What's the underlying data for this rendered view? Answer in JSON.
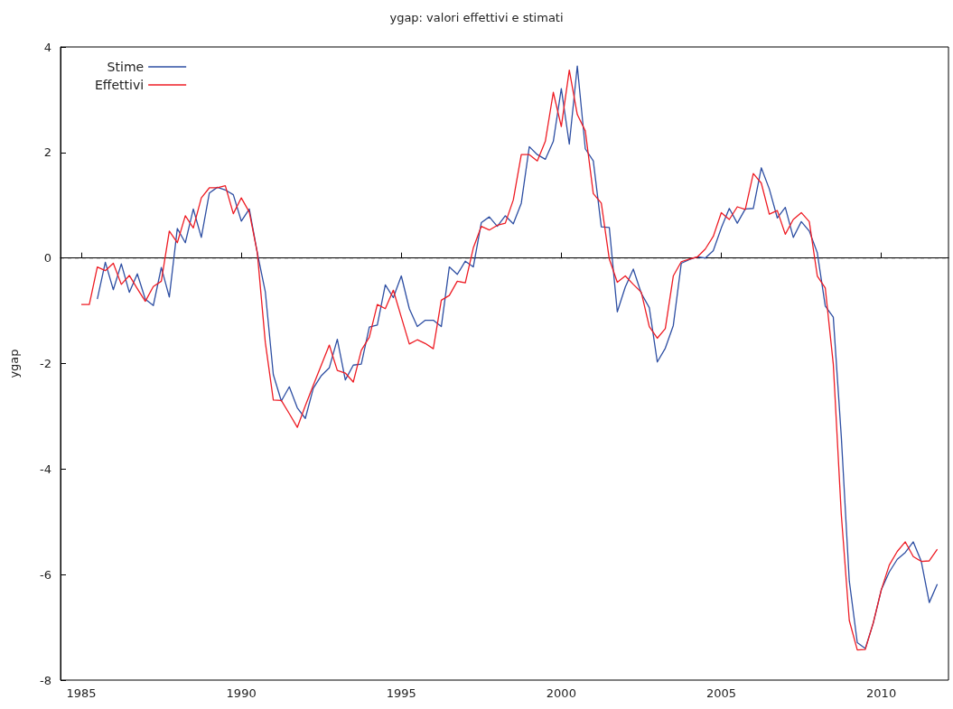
{
  "chart_data": {
    "type": "line",
    "title": "ygap: valori effettivi e stimati",
    "ylabel": "ygap",
    "xlim": [
      1984.35,
      2012.1
    ],
    "xticks": [
      1985,
      1990,
      1995,
      2000,
      2005,
      2010
    ],
    "ylim": [
      -8,
      4
    ],
    "yticks": [
      -8,
      -6,
      -4,
      -2,
      0,
      2,
      4
    ],
    "grid": false,
    "legend": "top left",
    "marker": "none",
    "line_style": "solid",
    "ref_lines": [
      {
        "axis": "y",
        "value": 0,
        "color": "#000000",
        "line_style": "dashed"
      }
    ],
    "series": [
      {
        "name": "Stime",
        "color": "#2e4fa3",
        "x": [
          1985.5,
          1985.75,
          1986,
          1986.25,
          1986.5,
          1986.75,
          1987,
          1987.25,
          1987.5,
          1987.75,
          1988,
          1988.25,
          1988.5,
          1988.75,
          1989,
          1989.25,
          1989.5,
          1989.75,
          1990,
          1990.25,
          1990.5,
          1990.75,
          1991,
          1991.25,
          1991.5,
          1991.75,
          1992,
          1992.25,
          1992.5,
          1992.75,
          1993,
          1993.25,
          1993.5,
          1993.75,
          1994,
          1994.25,
          1994.5,
          1994.75,
          1995,
          1995.25,
          1995.5,
          1995.75,
          1996,
          1996.25,
          1996.5,
          1996.75,
          1997,
          1997.25,
          1997.5,
          1997.75,
          1998,
          1998.25,
          1998.5,
          1998.75,
          1999,
          1999.25,
          1999.5,
          1999.75,
          2000,
          2000.25,
          2000.5,
          2000.75,
          2001,
          2001.25,
          2001.5,
          2001.75,
          2002,
          2002.25,
          2002.5,
          2002.75,
          2003,
          2003.25,
          2003.5,
          2003.75,
          2004,
          2004.25,
          2004.5,
          2004.75,
          2005,
          2005.25,
          2005.5,
          2005.75,
          2006,
          2006.25,
          2006.5,
          2006.75,
          2007,
          2007.25,
          2007.5,
          2007.75,
          2008,
          2008.25,
          2008.5,
          2008.75,
          2009,
          2009.25,
          2009.5,
          2009.75,
          2010,
          2010.25,
          2010.5,
          2010.75,
          2011,
          2011.25,
          2011.5,
          2011.75
        ],
        "values": [
          -0.78,
          -0.08,
          -0.6,
          -0.11,
          -0.65,
          -0.3,
          -0.78,
          -0.9,
          -0.18,
          -0.74,
          0.56,
          0.29,
          0.93,
          0.39,
          1.23,
          1.34,
          1.29,
          1.2,
          0.7,
          0.93,
          0.1,
          -0.64,
          -2.21,
          -2.71,
          -2.44,
          -2.84,
          -3.04,
          -2.47,
          -2.23,
          -2.08,
          -1.54,
          -2.31,
          -2.03,
          -2.01,
          -1.31,
          -1.27,
          -0.51,
          -0.75,
          -0.34,
          -0.96,
          -1.3,
          -1.18,
          -1.18,
          -1.3,
          -0.17,
          -0.31,
          -0.06,
          -0.17,
          0.67,
          0.78,
          0.6,
          0.8,
          0.65,
          1.04,
          2.11,
          1.96,
          1.87,
          2.21,
          3.21,
          2.16,
          3.64,
          2.07,
          1.84,
          0.59,
          0.58,
          -1.02,
          -0.55,
          -0.21,
          -0.67,
          -0.94,
          -1.97,
          -1.71,
          -1.28,
          -0.1,
          -0.03,
          0.02,
          0,
          0.14,
          0.57,
          0.94,
          0.66,
          0.93,
          0.94,
          1.71,
          1.31,
          0.76,
          0.96,
          0.39,
          0.69,
          0.51,
          0.1,
          -0.91,
          -1.12,
          -3.38,
          -6.12,
          -7.29,
          -7.4,
          -6.92,
          -6.29,
          -5.95,
          -5.71,
          -5.58,
          -5.38,
          -5.75,
          -6.53,
          -6.18
        ]
      },
      {
        "name": "Effettivi",
        "color": "#ee1c24",
        "x": [
          1985,
          1985.25,
          1985.5,
          1985.75,
          1986,
          1986.25,
          1986.5,
          1986.75,
          1987,
          1987.25,
          1987.5,
          1987.75,
          1988,
          1988.25,
          1988.5,
          1988.75,
          1989,
          1989.25,
          1989.5,
          1989.75,
          1990,
          1990.25,
          1990.5,
          1990.75,
          1991,
          1991.25,
          1991.5,
          1991.75,
          1992,
          1992.25,
          1992.5,
          1992.75,
          1993,
          1993.25,
          1993.5,
          1993.75,
          1994,
          1994.25,
          1994.5,
          1994.75,
          1995,
          1995.25,
          1995.5,
          1995.75,
          1996,
          1996.25,
          1996.5,
          1996.75,
          1997,
          1997.25,
          1997.5,
          1997.75,
          1998,
          1998.25,
          1998.5,
          1998.75,
          1999,
          1999.25,
          1999.5,
          1999.75,
          2000,
          2000.25,
          2000.5,
          2000.75,
          2001,
          2001.25,
          2001.5,
          2001.75,
          2002,
          2002.25,
          2002.5,
          2002.75,
          2003,
          2003.25,
          2003.5,
          2003.75,
          2004,
          2004.25,
          2004.5,
          2004.75,
          2005,
          2005.25,
          2005.5,
          2005.75,
          2006,
          2006.25,
          2006.5,
          2006.75,
          2007,
          2007.25,
          2007.5,
          2007.75,
          2008,
          2008.25,
          2008.5,
          2008.75,
          2009,
          2009.25,
          2009.5,
          2009.75,
          2010,
          2010.25,
          2010.5,
          2010.75,
          2011,
          2011.25,
          2011.5,
          2011.75
        ],
        "values": [
          -0.88,
          -0.88,
          -0.17,
          -0.24,
          -0.1,
          -0.5,
          -0.33,
          -0.58,
          -0.82,
          -0.54,
          -0.44,
          0.51,
          0.29,
          0.8,
          0.57,
          1.14,
          1.33,
          1.33,
          1.37,
          0.84,
          1.14,
          0.87,
          0.1,
          -1.6,
          -2.69,
          -2.7,
          -2.95,
          -3.21,
          -2.8,
          -2.41,
          -2.03,
          -1.65,
          -2.13,
          -2.18,
          -2.35,
          -1.75,
          -1.5,
          -0.88,
          -0.96,
          -0.61,
          -1.12,
          -1.63,
          -1.55,
          -1.62,
          -1.72,
          -0.8,
          -0.71,
          -0.44,
          -0.47,
          0.19,
          0.6,
          0.53,
          0.62,
          0.66,
          1.1,
          1.96,
          1.96,
          1.84,
          2.21,
          3.14,
          2.49,
          3.56,
          2.72,
          2.41,
          1.22,
          1.04,
          -0.02,
          -0.46,
          -0.34,
          -0.5,
          -0.65,
          -1.3,
          -1.52,
          -1.34,
          -0.34,
          -0.07,
          -0.02,
          0.02,
          0.17,
          0.41,
          0.86,
          0.73,
          0.97,
          0.92,
          1.6,
          1.42,
          0.83,
          0.9,
          0.45,
          0.73,
          0.86,
          0.69,
          -0.34,
          -0.57,
          -2.01,
          -4.86,
          -6.87,
          -7.43,
          -7.42,
          -6.91,
          -6.29,
          -5.82,
          -5.56,
          -5.38,
          -5.66,
          -5.75,
          -5.74,
          -5.52
        ]
      }
    ]
  }
}
